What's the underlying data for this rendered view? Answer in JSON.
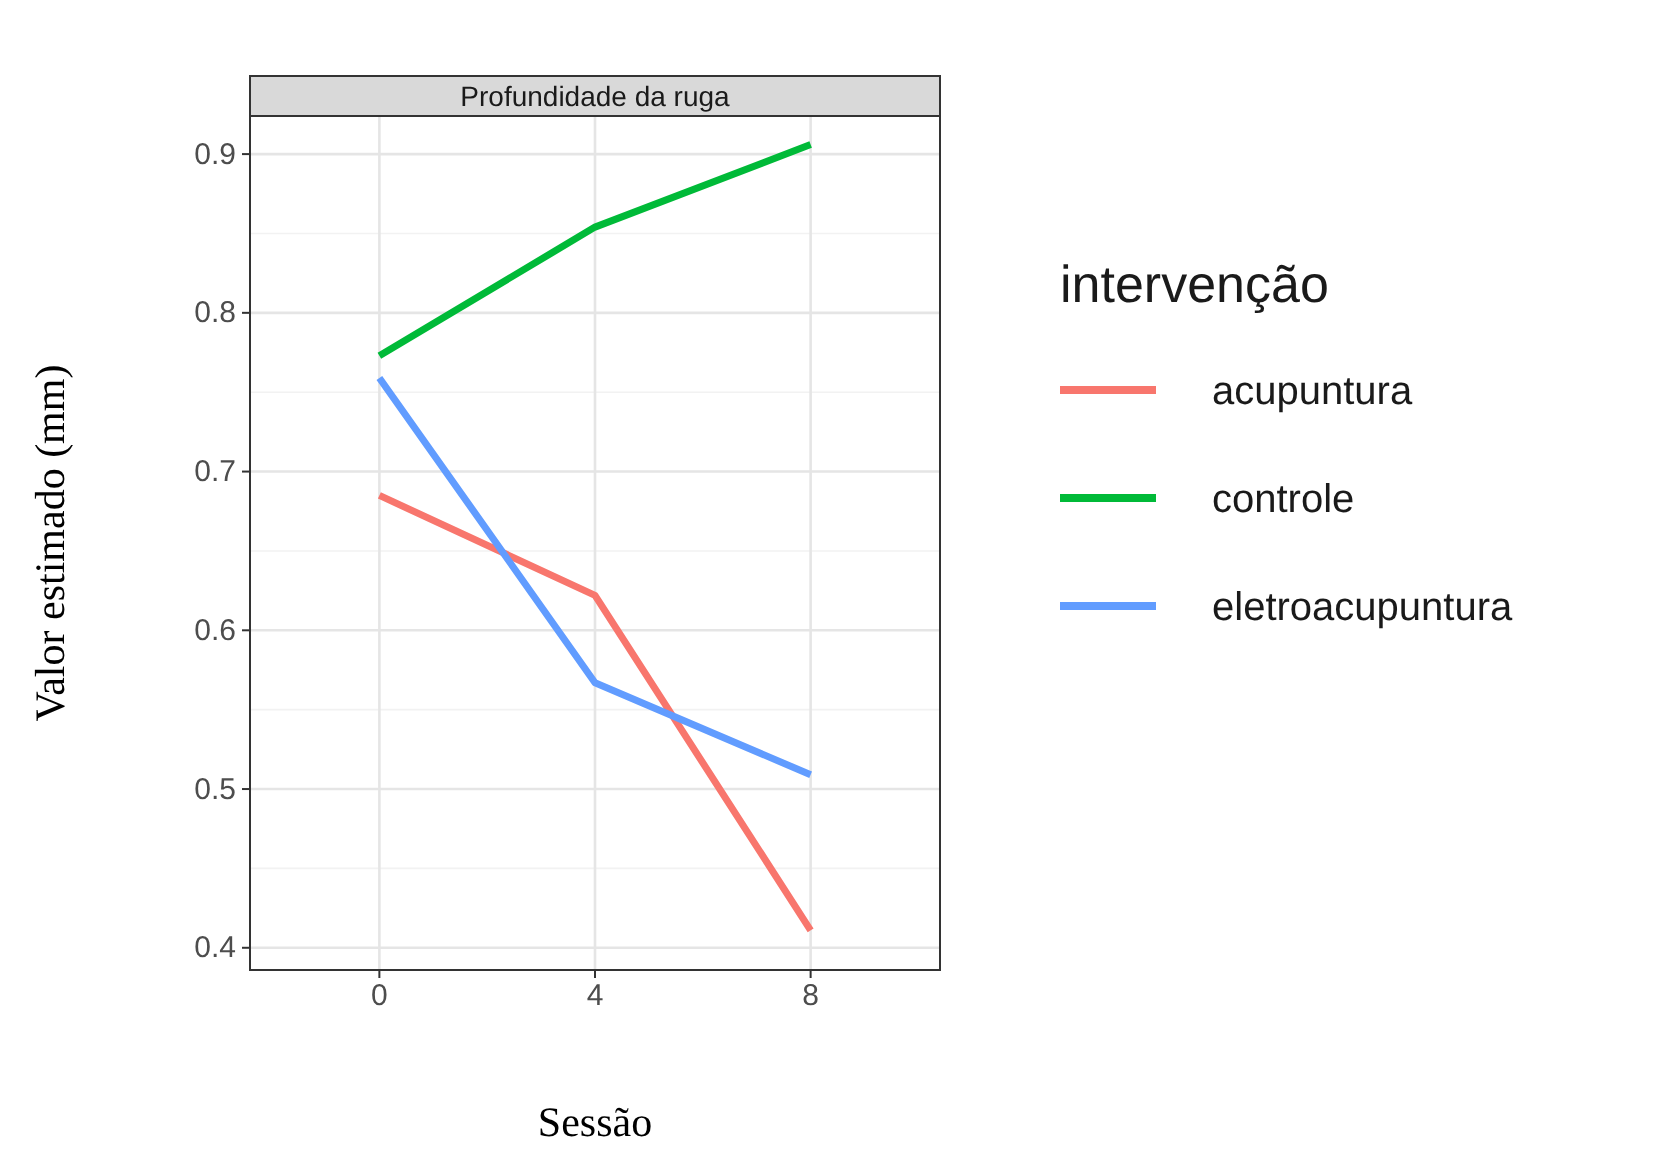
{
  "chart_data": {
    "type": "line",
    "title": "Profundidade da ruga",
    "xlabel": "Sessão",
    "ylabel": "Valor estimado (mm)",
    "legend_title": "intervenção",
    "legend": "right",
    "grid": true,
    "line_style": "solid",
    "marker": "none",
    "categories": [
      "0",
      "4",
      "8"
    ],
    "ylim": [
      0.386,
      0.924
    ],
    "yticks": [
      0.4,
      0.5,
      0.6,
      0.7,
      0.8,
      0.9
    ],
    "series": [
      {
        "name": "acupuntura",
        "color": "#f8766d",
        "values": [
          0.685,
          0.622,
          0.411
        ]
      },
      {
        "name": "controle",
        "color": "#00ba38",
        "values": [
          0.773,
          0.854,
          0.906
        ]
      },
      {
        "name": "eletroacupuntura",
        "color": "#619cff",
        "values": [
          0.759,
          0.567,
          0.509
        ]
      }
    ]
  }
}
